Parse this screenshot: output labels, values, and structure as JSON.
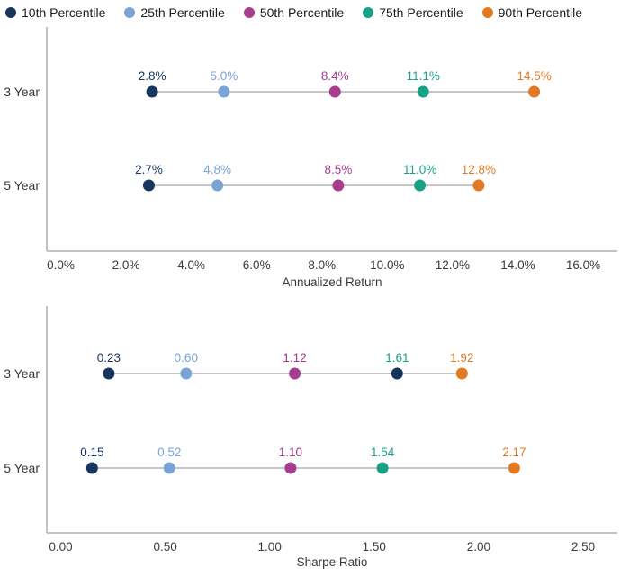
{
  "legend": {
    "items": [
      {
        "label": "10th Percentile",
        "color": "#17365d"
      },
      {
        "label": "25th Percentile",
        "color": "#7aa3d6"
      },
      {
        "label": "50th Percentile",
        "color": "#a63d8f"
      },
      {
        "label": "75th Percentile",
        "color": "#17a287"
      },
      {
        "label": "90th Percentile",
        "color": "#e27a24"
      }
    ]
  },
  "colors": {
    "y_axis_line": "#9a9a9a",
    "x_axis_line": "#c2c2c2",
    "connector_line": "#a3a3a3",
    "text": "#3a3a3a"
  },
  "chart_data": [
    {
      "type": "scatter",
      "title": "",
      "xlabel": "Annualized Return",
      "ylabel": "",
      "xlim": [
        0,
        16
      ],
      "grid": false,
      "legend_position": "top",
      "x_ticks": [
        {
          "value": 0,
          "label": "0.0%"
        },
        {
          "value": 2,
          "label": "2.0%"
        },
        {
          "value": 4,
          "label": "4.0%"
        },
        {
          "value": 6,
          "label": "6.0%"
        },
        {
          "value": 8,
          "label": "8.0%"
        },
        {
          "value": 10,
          "label": "10.0%"
        },
        {
          "value": 12,
          "label": "12.0%"
        },
        {
          "value": 14,
          "label": "14.0%"
        },
        {
          "value": 16,
          "label": "16.0%"
        }
      ],
      "rows": [
        {
          "category": "3 Year",
          "points": [
            {
              "percentile": 0,
              "value": 2.8,
              "label": "2.8%"
            },
            {
              "percentile": 1,
              "value": 5.0,
              "label": "5.0%"
            },
            {
              "percentile": 2,
              "value": 8.4,
              "label": "8.4%"
            },
            {
              "percentile": 3,
              "value": 11.1,
              "label": "11.1%"
            },
            {
              "percentile": 4,
              "value": 14.5,
              "label": "14.5%"
            }
          ]
        },
        {
          "category": "5 Year",
          "points": [
            {
              "percentile": 0,
              "value": 2.7,
              "label": "2.7%"
            },
            {
              "percentile": 1,
              "value": 4.8,
              "label": "4.8%"
            },
            {
              "percentile": 2,
              "value": 8.5,
              "label": "8.5%"
            },
            {
              "percentile": 3,
              "value": 11.0,
              "label": "11.0%"
            },
            {
              "percentile": 4,
              "value": 12.8,
              "label": "12.8%"
            }
          ]
        }
      ]
    },
    {
      "type": "scatter",
      "title": "",
      "xlabel": "Sharpe Ratio",
      "ylabel": "",
      "xlim": [
        0,
        2.5
      ],
      "grid": false,
      "legend_position": "top",
      "x_ticks": [
        {
          "value": 0,
          "label": "0.00"
        },
        {
          "value": 0.5,
          "label": "0.50"
        },
        {
          "value": 1.0,
          "label": "1.00"
        },
        {
          "value": 1.5,
          "label": "1.50"
        },
        {
          "value": 2.0,
          "label": "2.00"
        },
        {
          "value": 2.5,
          "label": "2.50"
        }
      ],
      "rows": [
        {
          "category": "3 Year",
          "points": [
            {
              "percentile": 0,
              "value": 0.23,
              "label": "0.23"
            },
            {
              "percentile": 1,
              "value": 0.6,
              "label": "0.60"
            },
            {
              "percentile": 2,
              "value": 1.12,
              "label": "1.12"
            },
            {
              "percentile": 3,
              "value": 1.61,
              "label": "1.61",
              "dot_color": "#17365d"
            },
            {
              "percentile": 4,
              "value": 1.92,
              "label": "1.92"
            }
          ]
        },
        {
          "category": "5 Year",
          "points": [
            {
              "percentile": 0,
              "value": 0.15,
              "label": "0.15"
            },
            {
              "percentile": 1,
              "value": 0.52,
              "label": "0.52"
            },
            {
              "percentile": 2,
              "value": 1.1,
              "label": "1.10"
            },
            {
              "percentile": 3,
              "value": 1.54,
              "label": "1.54"
            },
            {
              "percentile": 4,
              "value": 2.17,
              "label": "2.17"
            }
          ]
        }
      ]
    }
  ]
}
